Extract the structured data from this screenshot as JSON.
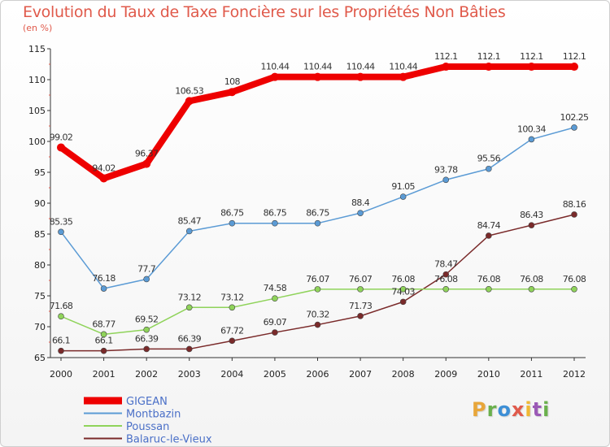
{
  "header": {
    "title": "Evolution du Taux de Taxe Foncière sur les Propriétés Non Bâties",
    "subtitle": "(en %)"
  },
  "logo": {
    "text": "Proxiti",
    "letters": [
      {
        "ch": "P",
        "color": "#e8a63a"
      },
      {
        "ch": "r",
        "color": "#6ab04c"
      },
      {
        "ch": "o",
        "color": "#3d8fd6"
      },
      {
        "ch": "x",
        "color": "#e05a4b"
      },
      {
        "ch": "i",
        "color": "#f0b833"
      },
      {
        "ch": "t",
        "color": "#9b59b6"
      },
      {
        "ch": "i",
        "color": "#6ab04c"
      }
    ]
  },
  "chart_data": {
    "type": "line",
    "title": "Evolution du Taux de Taxe Foncière sur les Propriétés Non Bâties",
    "ylabel": "(en %)",
    "xlabel": "",
    "x": [
      2000,
      2001,
      2002,
      2003,
      2004,
      2005,
      2006,
      2007,
      2008,
      2009,
      2010,
      2011,
      2012
    ],
    "ylim": [
      65,
      115
    ],
    "yticks": [
      65,
      70,
      75,
      80,
      85,
      90,
      95,
      100,
      105,
      110,
      115
    ],
    "grid": false,
    "legend_position": "bottom-left",
    "series": [
      {
        "name": "GIGEAN",
        "color": "#ee0000",
        "thick": true,
        "values": [
          99.02,
          94.02,
          96.37,
          106.53,
          108,
          110.44,
          110.44,
          110.44,
          110.44,
          112.1,
          112.1,
          112.1,
          112.1
        ],
        "labels": [
          "99.02",
          "94.02",
          "96.37",
          "106.53",
          "108",
          "110.44",
          "110.44",
          "110.44",
          "110.44",
          "112.1",
          "112.1",
          "112.1",
          "112.1"
        ]
      },
      {
        "name": "Montbazin",
        "color": "#5b9bd5",
        "thick": false,
        "values": [
          85.35,
          76.18,
          77.7,
          85.47,
          86.75,
          86.75,
          86.75,
          88.4,
          91.05,
          93.78,
          95.56,
          100.34,
          102.25
        ],
        "labels": [
          "85.35",
          "76.18",
          "77.7",
          "85.47",
          "86.75",
          "86.75",
          "86.75",
          "88.4",
          "91.05",
          "93.78",
          "95.56",
          "100.34",
          "102.25"
        ]
      },
      {
        "name": "Poussan",
        "color": "#8fd35a",
        "thick": false,
        "values": [
          71.68,
          68.77,
          69.52,
          73.12,
          73.12,
          74.58,
          76.07,
          76.07,
          76.08,
          76.08,
          76.08,
          76.08,
          76.08
        ],
        "labels": [
          "71.68",
          "68.77",
          "69.52",
          "73.12",
          "73.12",
          "74.58",
          "76.07",
          "76.07",
          "76.08",
          "76.08",
          "76.08",
          "76.08",
          "76.08"
        ]
      },
      {
        "name": "Balaruc-le-Vieux",
        "color": "#7a2a2a",
        "thick": false,
        "values": [
          66.1,
          66.1,
          66.39,
          66.39,
          67.72,
          69.07,
          70.32,
          71.73,
          74.03,
          78.47,
          84.74,
          86.43,
          88.16
        ],
        "labels": [
          "66.1",
          "66.1",
          "66.39",
          "66.39",
          "67.72",
          "69.07",
          "70.32",
          "71.73",
          "74.03",
          "78.47",
          "84.74",
          "86.43",
          "88.16"
        ]
      }
    ]
  }
}
